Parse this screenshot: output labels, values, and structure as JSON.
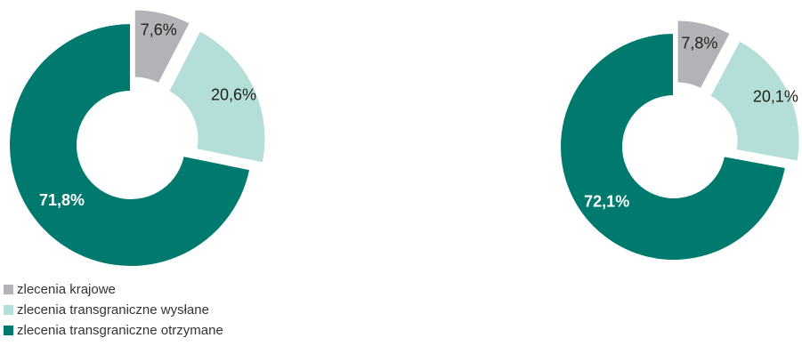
{
  "chart_data": [
    {
      "type": "pie",
      "variant": "donut",
      "title": "",
      "categories": [
        "zlecenia krajowe",
        "zlecenia transgraniczne wysłane",
        "zlecenia transgraniczne otrzymane"
      ],
      "values": [
        7.6,
        20.6,
        71.8
      ],
      "labels": [
        "7,6%",
        "20,6%",
        "71,8%"
      ],
      "colors": [
        "#b1b3b6",
        "#b4dfd9",
        "#007a6e"
      ],
      "label_colors": [
        "#222222",
        "#222222",
        "#ffffff"
      ],
      "label_bold": [
        false,
        false,
        true
      ],
      "exploded": [
        true,
        true,
        false
      ]
    },
    {
      "type": "pie",
      "variant": "donut",
      "title": "",
      "categories": [
        "zlecenia krajowe",
        "zlecenia transgraniczne wysłane",
        "zlecenia transgraniczne otrzymane"
      ],
      "values": [
        7.8,
        20.1,
        72.1
      ],
      "labels": [
        "7,8%",
        "20,1%",
        "72,1%"
      ],
      "colors": [
        "#b1b3b6",
        "#b4dfd9",
        "#007a6e"
      ],
      "label_colors": [
        "#222222",
        "#222222",
        "#ffffff"
      ],
      "label_bold": [
        false,
        false,
        true
      ],
      "exploded": [
        true,
        true,
        false
      ]
    }
  ],
  "legend": {
    "placement": "bottom-left",
    "items": [
      {
        "label": "zlecenia krajowe",
        "color": "#b1b3b6"
      },
      {
        "label": "zlecenia transgraniczne wysłane",
        "color": "#b4dfd9"
      },
      {
        "label": "zlecenia transgraniczne otrzymane",
        "color": "#007a6e"
      }
    ]
  }
}
